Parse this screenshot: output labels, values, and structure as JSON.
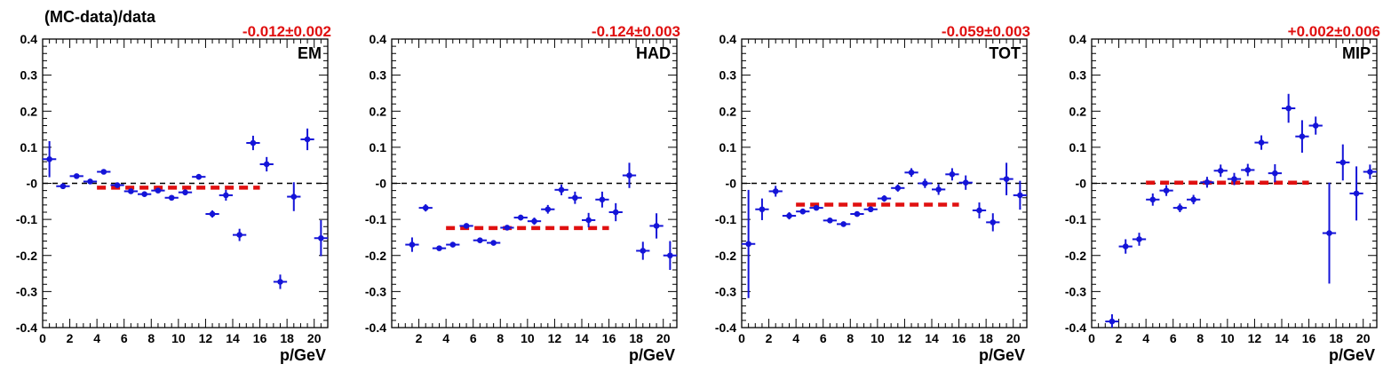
{
  "figure": {
    "ylabel": "(MC-data)/data",
    "xlabel": "p/GeV"
  },
  "chart_data": [
    {
      "type": "scatter",
      "panel": "EM",
      "fit_label": "-0.012±0.002",
      "fit_value": -0.012,
      "fit_range": [
        4,
        16
      ],
      "xlim": [
        0,
        21
      ],
      "ylim": [
        -0.4,
        0.4
      ],
      "x_ticks": [
        0,
        2,
        4,
        6,
        8,
        10,
        12,
        14,
        16,
        18,
        20
      ],
      "y_ticks": [
        "-0.4",
        "-0.3",
        "-0.2",
        "-0.1",
        "-0",
        "0.1",
        "0.2",
        "0.3",
        "0.4"
      ],
      "reference_line": 0,
      "points": [
        {
          "x": 0.5,
          "y": 0.067,
          "err": 0.05
        },
        {
          "x": 1.5,
          "y": -0.008,
          "err": 0.008
        },
        {
          "x": 2.5,
          "y": 0.02,
          "err": 0.006
        },
        {
          "x": 3.5,
          "y": 0.005,
          "err": 0.005
        },
        {
          "x": 4.5,
          "y": 0.032,
          "err": 0.006
        },
        {
          "x": 5.5,
          "y": -0.005,
          "err": 0.005
        },
        {
          "x": 6.5,
          "y": -0.022,
          "err": 0.005
        },
        {
          "x": 7.5,
          "y": -0.03,
          "err": 0.006
        },
        {
          "x": 8.5,
          "y": -0.02,
          "err": 0.006
        },
        {
          "x": 9.5,
          "y": -0.04,
          "err": 0.007
        },
        {
          "x": 10.5,
          "y": -0.025,
          "err": 0.008
        },
        {
          "x": 11.5,
          "y": 0.018,
          "err": 0.008
        },
        {
          "x": 12.5,
          "y": -0.085,
          "err": 0.01
        },
        {
          "x": 13.5,
          "y": -0.033,
          "err": 0.015
        },
        {
          "x": 14.5,
          "y": -0.143,
          "err": 0.017
        },
        {
          "x": 15.5,
          "y": 0.112,
          "err": 0.02
        },
        {
          "x": 16.5,
          "y": 0.053,
          "err": 0.02
        },
        {
          "x": 17.5,
          "y": -0.273,
          "err": 0.02
        },
        {
          "x": 18.5,
          "y": -0.037,
          "err": 0.04
        },
        {
          "x": 19.5,
          "y": 0.122,
          "err": 0.03
        },
        {
          "x": 20.5,
          "y": -0.152,
          "err": 0.05
        }
      ]
    },
    {
      "type": "scatter",
      "panel": "HAD",
      "fit_label": "-0.124±0.003",
      "fit_value": -0.124,
      "fit_range": [
        4,
        16
      ],
      "xlim": [
        0,
        21
      ],
      "ylim": [
        -0.4,
        0.4
      ],
      "x_ticks": [
        2,
        4,
        6,
        8,
        10,
        12,
        14,
        16,
        18,
        20
      ],
      "y_ticks": [
        "-0.4",
        "-0.3",
        "-0.2",
        "-0.1",
        "-0",
        "0.1",
        "0.2",
        "0.3",
        "0.4"
      ],
      "reference_line": 0,
      "points": [
        {
          "x": 1.5,
          "y": -0.17,
          "err": 0.02
        },
        {
          "x": 2.5,
          "y": -0.068,
          "err": 0.01
        },
        {
          "x": 3.5,
          "y": -0.18,
          "err": 0.007
        },
        {
          "x": 4.5,
          "y": -0.17,
          "err": 0.007
        },
        {
          "x": 5.5,
          "y": -0.118,
          "err": 0.006
        },
        {
          "x": 6.5,
          "y": -0.158,
          "err": 0.006
        },
        {
          "x": 7.5,
          "y": -0.165,
          "err": 0.006
        },
        {
          "x": 8.5,
          "y": -0.123,
          "err": 0.007
        },
        {
          "x": 9.5,
          "y": -0.095,
          "err": 0.008
        },
        {
          "x": 10.5,
          "y": -0.105,
          "err": 0.01
        },
        {
          "x": 11.5,
          "y": -0.072,
          "err": 0.012
        },
        {
          "x": 12.5,
          "y": -0.018,
          "err": 0.015
        },
        {
          "x": 13.5,
          "y": -0.04,
          "err": 0.017
        },
        {
          "x": 14.5,
          "y": -0.102,
          "err": 0.02
        },
        {
          "x": 15.5,
          "y": -0.045,
          "err": 0.022
        },
        {
          "x": 16.5,
          "y": -0.08,
          "err": 0.025
        },
        {
          "x": 17.5,
          "y": 0.022,
          "err": 0.035
        },
        {
          "x": 18.5,
          "y": -0.187,
          "err": 0.025
        },
        {
          "x": 19.5,
          "y": -0.118,
          "err": 0.035
        },
        {
          "x": 20.5,
          "y": -0.2,
          "err": 0.04
        }
      ]
    },
    {
      "type": "scatter",
      "panel": "TOT",
      "fit_label": "-0.059±0.003",
      "fit_value": -0.059,
      "fit_range": [
        4,
        16
      ],
      "xlim": [
        0,
        21
      ],
      "ylim": [
        -0.4,
        0.4
      ],
      "x_ticks": [
        0,
        2,
        4,
        6,
        8,
        10,
        12,
        14,
        16,
        18,
        20
      ],
      "y_ticks": [
        "-0.4",
        "-0.3",
        "-0.2",
        "-0.1",
        "-0",
        "0.1",
        "0.2",
        "0.3",
        "0.4"
      ],
      "reference_line": 0,
      "points": [
        {
          "x": 0.5,
          "y": -0.168,
          "err": 0.15
        },
        {
          "x": 1.5,
          "y": -0.072,
          "err": 0.03
        },
        {
          "x": 2.5,
          "y": -0.022,
          "err": 0.015
        },
        {
          "x": 3.5,
          "y": -0.09,
          "err": 0.01
        },
        {
          "x": 4.5,
          "y": -0.078,
          "err": 0.008
        },
        {
          "x": 5.5,
          "y": -0.068,
          "err": 0.007
        },
        {
          "x": 6.5,
          "y": -0.103,
          "err": 0.006
        },
        {
          "x": 7.5,
          "y": -0.113,
          "err": 0.006
        },
        {
          "x": 8.5,
          "y": -0.085,
          "err": 0.007
        },
        {
          "x": 9.5,
          "y": -0.072,
          "err": 0.008
        },
        {
          "x": 10.5,
          "y": -0.042,
          "err": 0.009
        },
        {
          "x": 11.5,
          "y": -0.013,
          "err": 0.01
        },
        {
          "x": 12.5,
          "y": 0.03,
          "err": 0.012
        },
        {
          "x": 13.5,
          "y": 0.0,
          "err": 0.013
        },
        {
          "x": 14.5,
          "y": -0.017,
          "err": 0.015
        },
        {
          "x": 15.5,
          "y": 0.025,
          "err": 0.017
        },
        {
          "x": 16.5,
          "y": 0.002,
          "err": 0.02
        },
        {
          "x": 17.5,
          "y": -0.075,
          "err": 0.022
        },
        {
          "x": 18.5,
          "y": -0.108,
          "err": 0.025
        },
        {
          "x": 19.5,
          "y": 0.012,
          "err": 0.045
        },
        {
          "x": 20.5,
          "y": -0.033,
          "err": 0.04
        }
      ]
    },
    {
      "type": "scatter",
      "panel": "MIP",
      "fit_label": "+0.002±0.006",
      "fit_value": 0.002,
      "fit_range": [
        4,
        16
      ],
      "xlim": [
        0,
        21
      ],
      "ylim": [
        -0.4,
        0.4
      ],
      "x_ticks": [
        0,
        2,
        4,
        6,
        8,
        10,
        12,
        14,
        16,
        18,
        20
      ],
      "y_ticks": [
        "-0.4",
        "-0.3",
        "-0.2",
        "-0.1",
        "-0",
        "0.1",
        "0.2",
        "0.3",
        "0.4"
      ],
      "reference_line": 0,
      "points": [
        {
          "x": 1.5,
          "y": -0.383,
          "err": 0.02
        },
        {
          "x": 2.5,
          "y": -0.175,
          "err": 0.02
        },
        {
          "x": 3.5,
          "y": -0.155,
          "err": 0.018
        },
        {
          "x": 4.5,
          "y": -0.045,
          "err": 0.017
        },
        {
          "x": 5.5,
          "y": -0.02,
          "err": 0.015
        },
        {
          "x": 6.5,
          "y": -0.068,
          "err": 0.012
        },
        {
          "x": 7.5,
          "y": -0.045,
          "err": 0.013
        },
        {
          "x": 8.5,
          "y": 0.003,
          "err": 0.015
        },
        {
          "x": 9.5,
          "y": 0.035,
          "err": 0.017
        },
        {
          "x": 10.5,
          "y": 0.012,
          "err": 0.017
        },
        {
          "x": 11.5,
          "y": 0.037,
          "err": 0.017
        },
        {
          "x": 12.5,
          "y": 0.113,
          "err": 0.02
        },
        {
          "x": 13.5,
          "y": 0.028,
          "err": 0.025
        },
        {
          "x": 14.5,
          "y": 0.208,
          "err": 0.04
        },
        {
          "x": 15.5,
          "y": 0.13,
          "err": 0.045
        },
        {
          "x": 16.5,
          "y": 0.16,
          "err": 0.025
        },
        {
          "x": 17.5,
          "y": -0.138,
          "err": 0.14
        },
        {
          "x": 18.5,
          "y": 0.058,
          "err": 0.05
        },
        {
          "x": 19.5,
          "y": -0.028,
          "err": 0.075
        },
        {
          "x": 20.5,
          "y": 0.032,
          "err": 0.02
        }
      ]
    }
  ]
}
